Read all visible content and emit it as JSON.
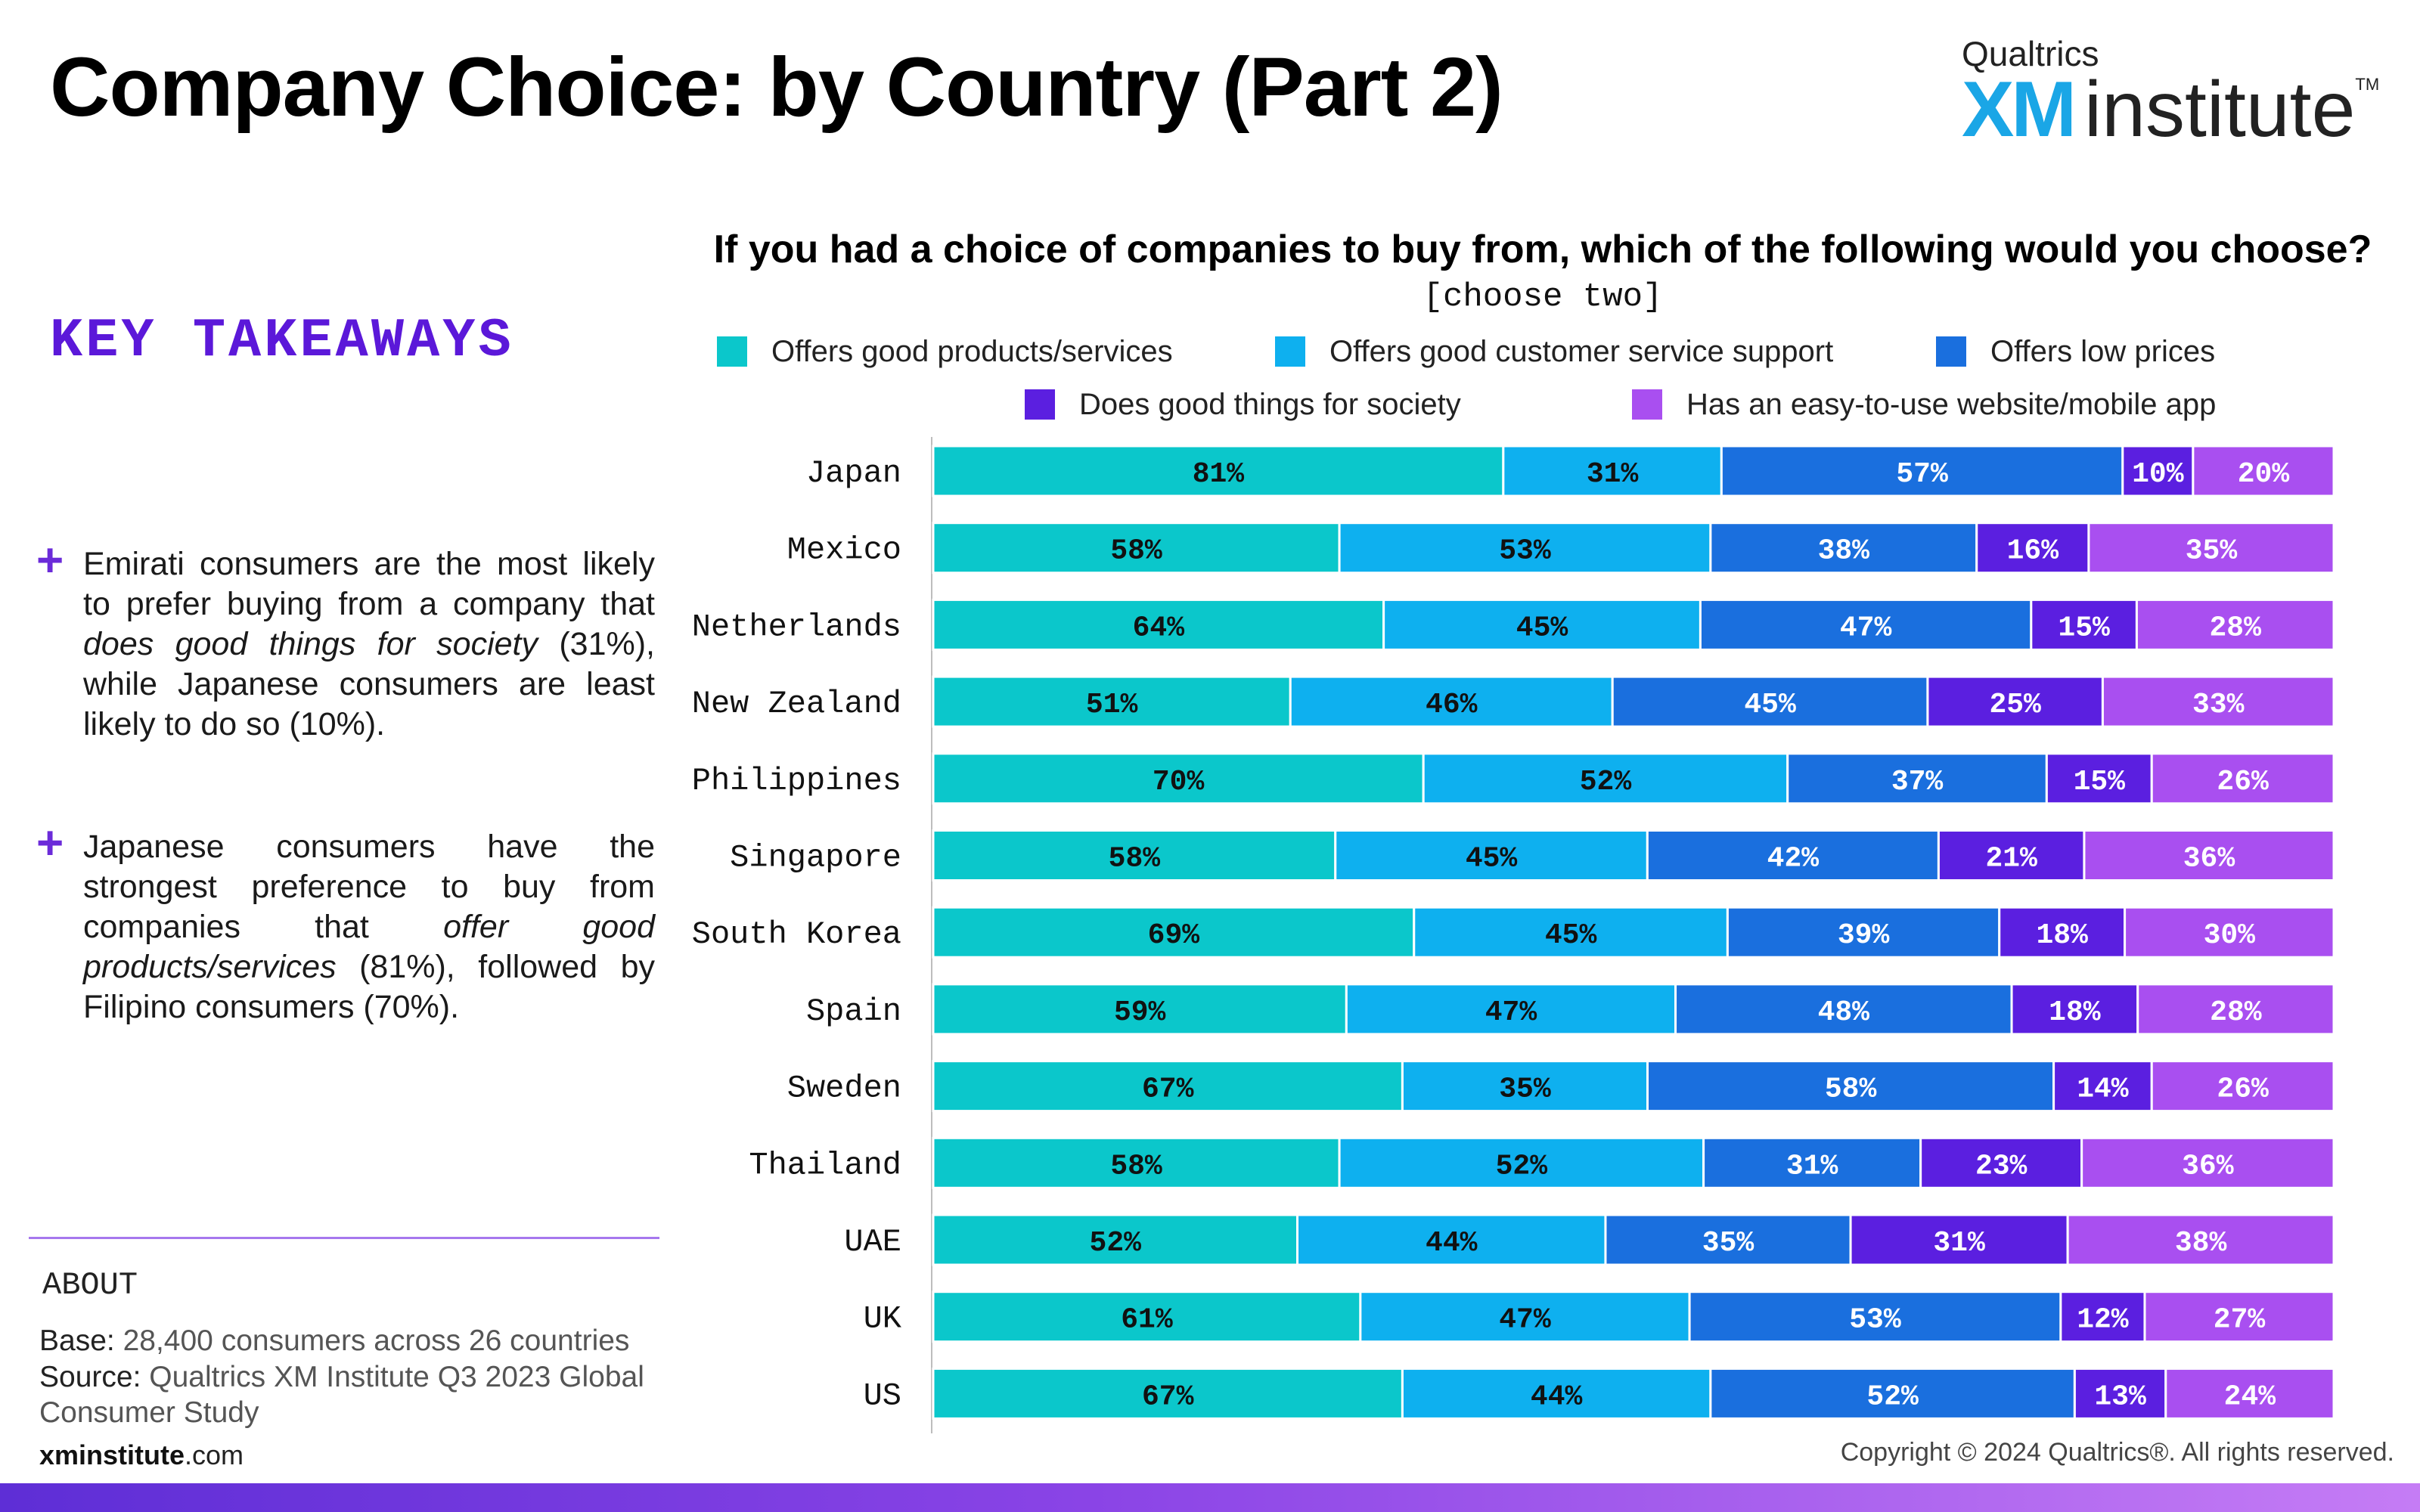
{
  "page": {
    "title": "Company Choice: by Country (Part 2)",
    "logo_top": "Qualtrics",
    "logo_xm": "XM",
    "logo_institute": "institute",
    "logo_tm": "TM"
  },
  "takeaways": {
    "heading": "KEY TAKEAWAYS",
    "items": [
      {
        "pre": "Emirati consumers are the most likely to prefer buying from a company that ",
        "em": "does good things for society",
        "post": " (31%), while Japanese consumers are least likely to do so (10%)."
      },
      {
        "pre": "Japanese consumers have the strongest preference to buy from companies that ",
        "em": "offer good products/services",
        "post": " (81%), followed by Filipino consumers (70%)."
      }
    ]
  },
  "about": {
    "heading": "ABOUT",
    "base_label": "Base:",
    "base_text": " 28,400 consumers across 26 countries",
    "source_label": "Source:",
    "source_text": " Qualtrics XM Institute Q3 2023 Global Consumer Study"
  },
  "footer": {
    "site_bold": "xminstitute",
    "site_rest": ".com",
    "copyright": "Copyright © 2024 Qualtrics®. All rights reserved."
  },
  "chart_data": {
    "type": "bar",
    "orientation": "horizontal",
    "stacked": true,
    "title": "If you had a choice of companies to buy from, which of the following would you choose?",
    "subtitle": "[choose two]",
    "legend_position": "top",
    "categories": [
      "Japan",
      "Mexico",
      "Netherlands",
      "New Zealand",
      "Philippines",
      "Singapore",
      "South Korea",
      "Spain",
      "Sweden",
      "Thailand",
      "UAE",
      "UK",
      "US"
    ],
    "series": [
      {
        "name": "Offers good products/services",
        "color": "#0bc7cb",
        "label_color": "#111111",
        "values": [
          81,
          58,
          64,
          51,
          70,
          58,
          69,
          59,
          67,
          58,
          52,
          61,
          67
        ]
      },
      {
        "name": "Offers good customer service support",
        "color": "#0eb0ef",
        "label_color": "#111111",
        "values": [
          31,
          53,
          45,
          46,
          52,
          45,
          45,
          47,
          35,
          52,
          44,
          47,
          44
        ]
      },
      {
        "name": "Offers low prices",
        "color": "#1a6fde",
        "label_color": "#ffffff",
        "values": [
          57,
          38,
          47,
          45,
          37,
          42,
          39,
          48,
          58,
          31,
          35,
          53,
          52
        ]
      },
      {
        "name": "Does good things for society",
        "color": "#5b1fe0",
        "label_color": "#ffffff",
        "values": [
          10,
          16,
          15,
          25,
          15,
          21,
          18,
          18,
          14,
          23,
          31,
          12,
          13
        ]
      },
      {
        "name": "Has an easy-to-use website/mobile app",
        "color": "#a94ff0",
        "label_color": "#ffffff",
        "values": [
          20,
          35,
          28,
          33,
          26,
          36,
          30,
          28,
          26,
          36,
          38,
          27,
          24
        ]
      }
    ],
    "value_suffix": "%"
  }
}
